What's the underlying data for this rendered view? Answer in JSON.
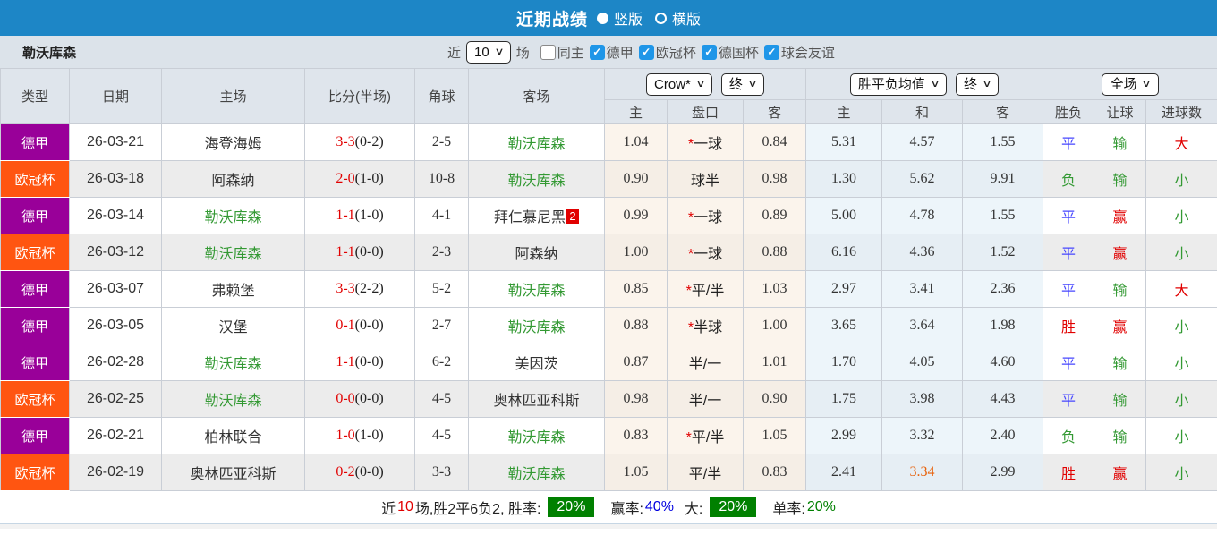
{
  "icons": {
    "chevron": "∨",
    "check": "✓",
    "star": "*"
  },
  "colors": {
    "topbar_blue": "#1d86c6",
    "checkbox_blue": "#1f96e8",
    "league_purple": "#990099",
    "league_orange": "#ff5511",
    "score_red": "#e10000",
    "team_green": "#339933",
    "result_blue": "#4646ff",
    "highlight_orange": "#e8610a",
    "summary_badge_green": "#008000"
  },
  "topbar": {
    "title": "近期战绩",
    "radios": [
      {
        "label": "竖版",
        "selected": true
      },
      {
        "label": "横版",
        "selected": false
      }
    ]
  },
  "filter": {
    "team": "勒沃库森",
    "near_label": "近",
    "games_value": "10",
    "games_label": "场",
    "checkboxes": [
      {
        "label": "同主",
        "checked": false
      },
      {
        "label": "德甲",
        "checked": true
      },
      {
        "label": "欧冠杯",
        "checked": true
      },
      {
        "label": "德国杯",
        "checked": true
      },
      {
        "label": "球会友谊",
        "checked": true
      }
    ]
  },
  "table": {
    "columns": [
      "类型",
      "日期",
      "主场",
      "比分(半场)",
      "角球",
      "客场"
    ],
    "selects": {
      "odds_source": "Crow*",
      "odds_state": "终",
      "avg_label": "胜平负均值",
      "avg_state": "终",
      "scope": "全场"
    },
    "sub_headers": [
      "主",
      "盘口",
      "客",
      "主",
      "和",
      "客",
      "胜负",
      "让球",
      "进球数"
    ],
    "rows": [
      {
        "type": "德甲",
        "type_color": "purple",
        "shaded": false,
        "date": "26-03-21",
        "home": "海登海姆",
        "home_green": false,
        "score_ft": "3-3",
        "score_ht": "(0-2)",
        "corner": "2-5",
        "away": "勒沃库森",
        "away_green": true,
        "away_badge": null,
        "crow_home": "1.04",
        "handicap": "一球",
        "handicap_star": true,
        "crow_away": "0.84",
        "avg_home": "5.31",
        "avg_draw": "4.57",
        "avg_draw_orange": false,
        "avg_away": "1.55",
        "outcome": "平",
        "outcome_color": "blue",
        "spread": "输",
        "spread_color": "green",
        "goals": "大",
        "goals_color": "red"
      },
      {
        "type": "欧冠杯",
        "type_color": "orange",
        "shaded": true,
        "date": "26-03-18",
        "home": "阿森纳",
        "home_green": false,
        "score_ft": "2-0",
        "score_ht": "(1-0)",
        "corner": "10-8",
        "away": "勒沃库森",
        "away_green": true,
        "away_badge": null,
        "crow_home": "0.90",
        "handicap": "球半",
        "handicap_star": false,
        "crow_away": "0.98",
        "avg_home": "1.30",
        "avg_draw": "5.62",
        "avg_draw_orange": false,
        "avg_away": "9.91",
        "outcome": "负",
        "outcome_color": "green",
        "spread": "输",
        "spread_color": "green",
        "goals": "小",
        "goals_color": "green"
      },
      {
        "type": "德甲",
        "type_color": "purple",
        "shaded": false,
        "date": "26-03-14",
        "home": "勒沃库森",
        "home_green": true,
        "score_ft": "1-1",
        "score_ht": "(1-0)",
        "corner": "4-1",
        "away": "拜仁慕尼黑",
        "away_green": false,
        "away_badge": "2",
        "crow_home": "0.99",
        "handicap": "一球",
        "handicap_star": true,
        "crow_away": "0.89",
        "avg_home": "5.00",
        "avg_draw": "4.78",
        "avg_draw_orange": false,
        "avg_away": "1.55",
        "outcome": "平",
        "outcome_color": "blue",
        "spread": "赢",
        "spread_color": "red",
        "goals": "小",
        "goals_color": "green"
      },
      {
        "type": "欧冠杯",
        "type_color": "orange",
        "shaded": true,
        "date": "26-03-12",
        "home": "勒沃库森",
        "home_green": true,
        "score_ft": "1-1",
        "score_ht": "(0-0)",
        "corner": "2-3",
        "away": "阿森纳",
        "away_green": false,
        "away_badge": null,
        "crow_home": "1.00",
        "handicap": "一球",
        "handicap_star": true,
        "crow_away": "0.88",
        "avg_home": "6.16",
        "avg_draw": "4.36",
        "avg_draw_orange": false,
        "avg_away": "1.52",
        "outcome": "平",
        "outcome_color": "blue",
        "spread": "赢",
        "spread_color": "red",
        "goals": "小",
        "goals_color": "green"
      },
      {
        "type": "德甲",
        "type_color": "purple",
        "shaded": false,
        "date": "26-03-07",
        "home": "弗赖堡",
        "home_green": false,
        "score_ft": "3-3",
        "score_ht": "(2-2)",
        "corner": "5-2",
        "away": "勒沃库森",
        "away_green": true,
        "away_badge": null,
        "crow_home": "0.85",
        "handicap": "平/半",
        "handicap_star": true,
        "crow_away": "1.03",
        "avg_home": "2.97",
        "avg_draw": "3.41",
        "avg_draw_orange": false,
        "avg_away": "2.36",
        "outcome": "平",
        "outcome_color": "blue",
        "spread": "输",
        "spread_color": "green",
        "goals": "大",
        "goals_color": "red"
      },
      {
        "type": "德甲",
        "type_color": "purple",
        "shaded": false,
        "date": "26-03-05",
        "home": "汉堡",
        "home_green": false,
        "score_ft": "0-1",
        "score_ht": "(0-0)",
        "corner": "2-7",
        "away": "勒沃库森",
        "away_green": true,
        "away_badge": null,
        "crow_home": "0.88",
        "handicap": "半球",
        "handicap_star": true,
        "crow_away": "1.00",
        "avg_home": "3.65",
        "avg_draw": "3.64",
        "avg_draw_orange": false,
        "avg_away": "1.98",
        "outcome": "胜",
        "outcome_color": "red",
        "spread": "赢",
        "spread_color": "red",
        "goals": "小",
        "goals_color": "green"
      },
      {
        "type": "德甲",
        "type_color": "purple",
        "shaded": false,
        "date": "26-02-28",
        "home": "勒沃库森",
        "home_green": true,
        "score_ft": "1-1",
        "score_ht": "(0-0)",
        "corner": "6-2",
        "away": "美因茨",
        "away_green": false,
        "away_badge": null,
        "crow_home": "0.87",
        "handicap": "半/一",
        "handicap_star": false,
        "crow_away": "1.01",
        "avg_home": "1.70",
        "avg_draw": "4.05",
        "avg_draw_orange": false,
        "avg_away": "4.60",
        "outcome": "平",
        "outcome_color": "blue",
        "spread": "输",
        "spread_color": "green",
        "goals": "小",
        "goals_color": "green"
      },
      {
        "type": "欧冠杯",
        "type_color": "orange",
        "shaded": true,
        "date": "26-02-25",
        "home": "勒沃库森",
        "home_green": true,
        "score_ft": "0-0",
        "score_ht": "(0-0)",
        "corner": "4-5",
        "away": "奥林匹亚科斯",
        "away_green": false,
        "away_badge": null,
        "crow_home": "0.98",
        "handicap": "半/一",
        "handicap_star": false,
        "crow_away": "0.90",
        "avg_home": "1.75",
        "avg_draw": "3.98",
        "avg_draw_orange": false,
        "avg_away": "4.43",
        "outcome": "平",
        "outcome_color": "blue",
        "spread": "输",
        "spread_color": "green",
        "goals": "小",
        "goals_color": "green"
      },
      {
        "type": "德甲",
        "type_color": "purple",
        "shaded": false,
        "date": "26-02-21",
        "home": "柏林联合",
        "home_green": false,
        "score_ft": "1-0",
        "score_ht": "(1-0)",
        "corner": "4-5",
        "away": "勒沃库森",
        "away_green": true,
        "away_badge": null,
        "crow_home": "0.83",
        "handicap": "平/半",
        "handicap_star": true,
        "crow_away": "1.05",
        "avg_home": "2.99",
        "avg_draw": "3.32",
        "avg_draw_orange": false,
        "avg_away": "2.40",
        "outcome": "负",
        "outcome_color": "green",
        "spread": "输",
        "spread_color": "green",
        "goals": "小",
        "goals_color": "green"
      },
      {
        "type": "欧冠杯",
        "type_color": "orange",
        "shaded": true,
        "date": "26-02-19",
        "home": "奥林匹亚科斯",
        "home_green": false,
        "score_ft": "0-2",
        "score_ht": "(0-0)",
        "corner": "3-3",
        "away": "勒沃库森",
        "away_green": true,
        "away_badge": null,
        "crow_home": "1.05",
        "handicap": "平/半",
        "handicap_star": false,
        "crow_away": "0.83",
        "avg_home": "2.41",
        "avg_draw": "3.34",
        "avg_draw_orange": true,
        "avg_away": "2.99",
        "outcome": "胜",
        "outcome_color": "red",
        "spread": "赢",
        "spread_color": "red",
        "goals": "小",
        "goals_color": "green"
      }
    ]
  },
  "summary": {
    "near_label": "近",
    "count": "10",
    "detail": "场,胜2平6负2, 胜率:",
    "win_pct": "20%",
    "win_rate_label": "赢率:",
    "win_rate": "40%",
    "big_label": "大:",
    "big_pct": "20%",
    "single_label": "单率:",
    "single_pct": "20%"
  }
}
